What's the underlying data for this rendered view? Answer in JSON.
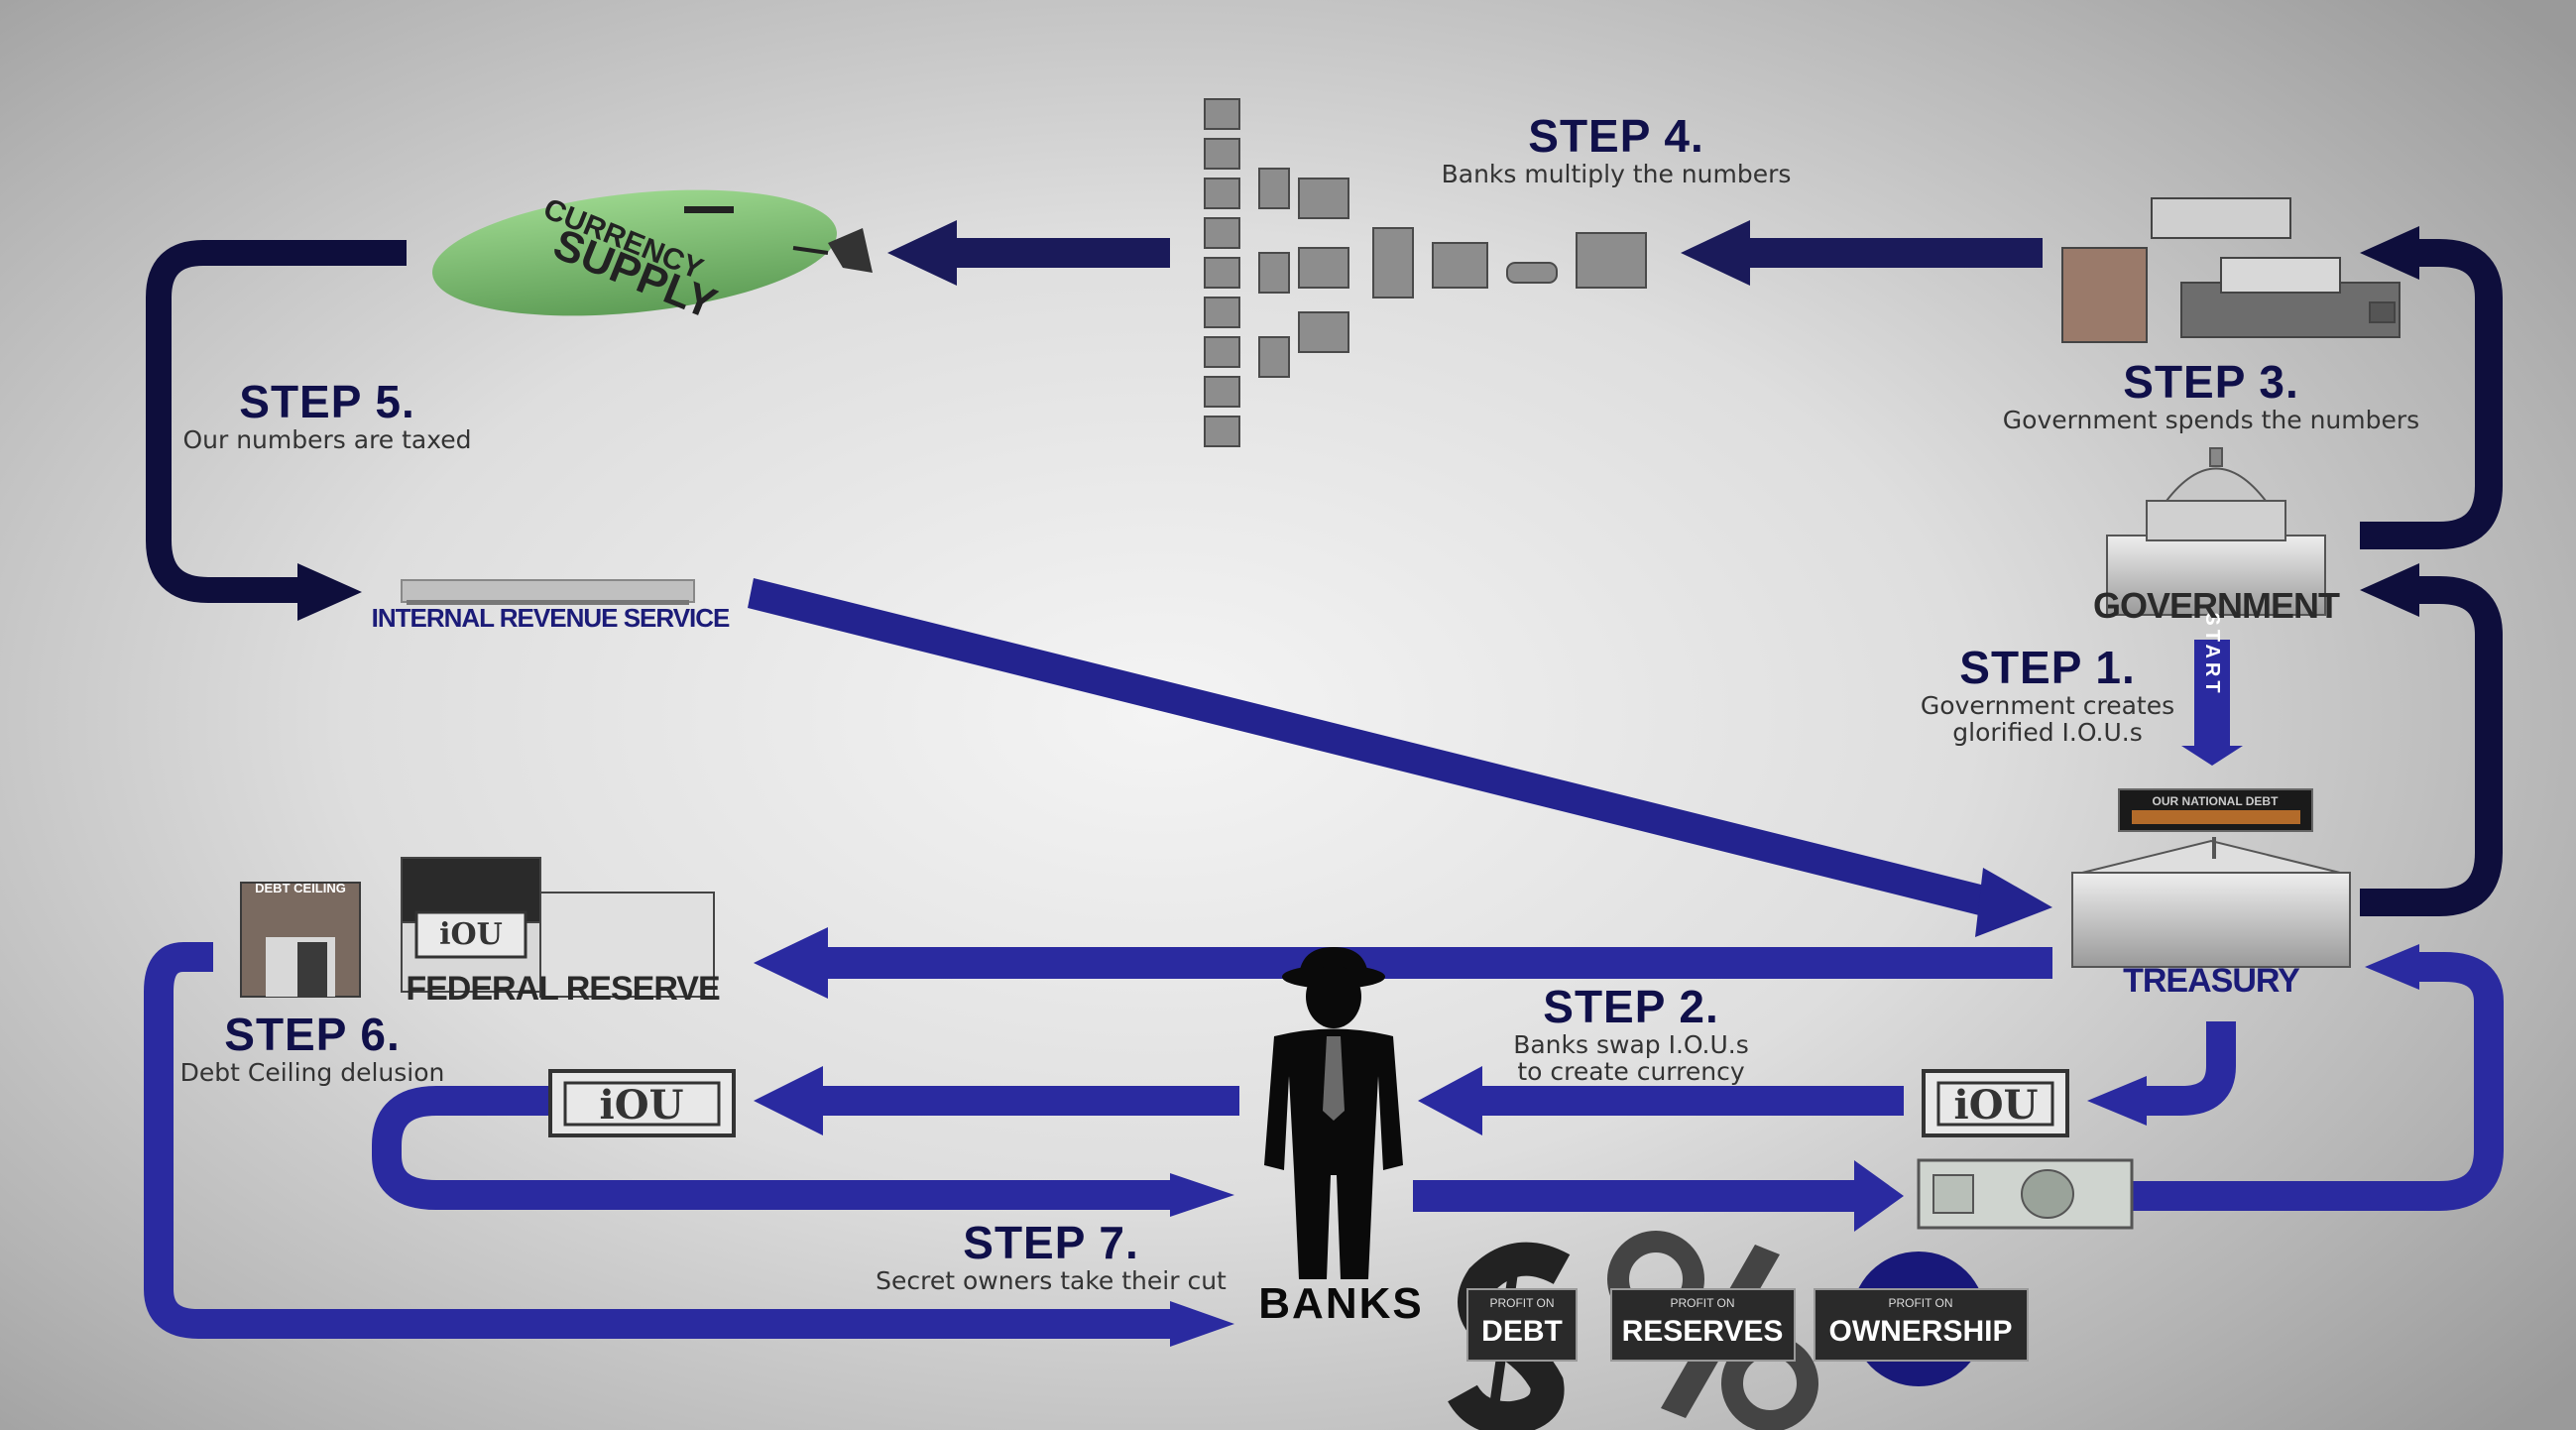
{
  "steps": {
    "step1": {
      "title": "STEP 1.",
      "line1": "Government creates",
      "line2": "glorified I.O.U.s"
    },
    "step2": {
      "title": "STEP 2.",
      "line1": "Banks swap I.O.U.s",
      "line2": "to create currency"
    },
    "step3": {
      "title": "STEP 3.",
      "line1": "Government spends the numbers"
    },
    "step4": {
      "title": "STEP 4.",
      "line1": "Banks multiply the numbers"
    },
    "step5": {
      "title": "STEP 5.",
      "line1": "Our numbers are taxed"
    },
    "step6": {
      "title": "STEP 6.",
      "line1": "Debt Ceiling delusion"
    },
    "step7": {
      "title": "STEP 7.",
      "line1": "Secret owners take their cut"
    }
  },
  "nodes": {
    "government": "GOVERNMENT",
    "treasury": "TREASURY",
    "federal_reserve": "FEDERAL RESERVE",
    "irs": "INTERNAL REVENUE SERVICE",
    "banks": "BANKS",
    "currency_line1": "CURRENCY",
    "currency_line2": "SUPPLY",
    "start": "START",
    "national_debt": "OUR NATIONAL DEBT",
    "debt_ceiling": "DEBT CEILING",
    "iou": "iOU"
  },
  "profits": {
    "debt": {
      "small": "PROFIT ON",
      "big": "DEBT"
    },
    "reserves": {
      "small": "PROFIT ON",
      "big": "RESERVES"
    },
    "ownership": {
      "small": "PROFIT ON",
      "big": "OWNERSHIP"
    }
  },
  "colors": {
    "arrow_blue": "#1f1f8c",
    "arrow_navy": "#0e0e3c",
    "step_title": "#10104a",
    "caption_blue": "#1b1b78",
    "currency_green": "#86c879"
  }
}
